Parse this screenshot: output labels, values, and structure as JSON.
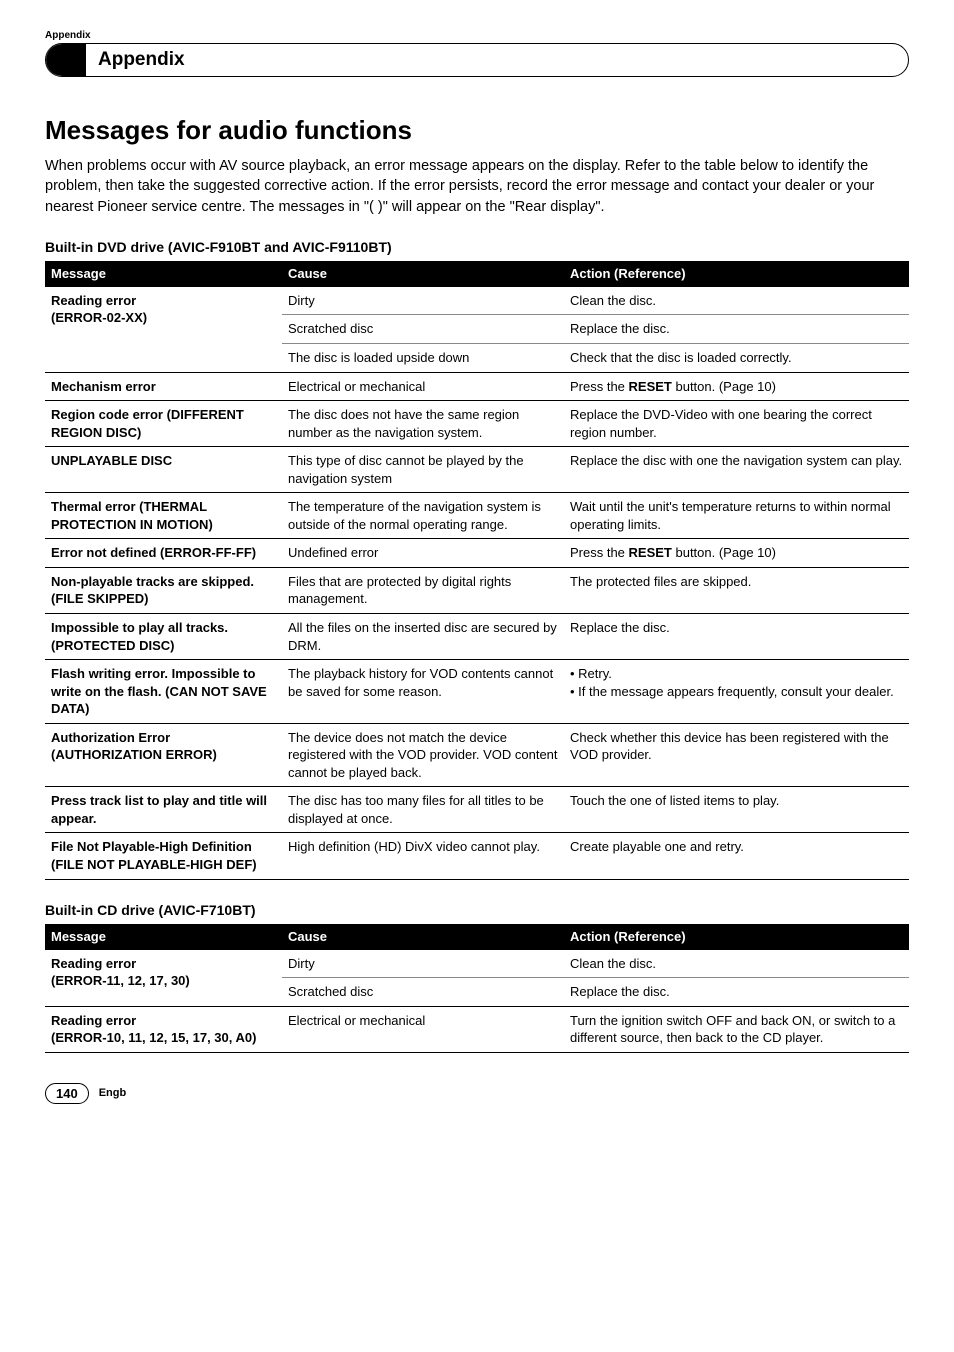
{
  "header": {
    "section_label": "Appendix",
    "title": "Appendix"
  },
  "main_heading": "Messages for audio functions",
  "intro": "When problems occur with AV source playback, an error message appears on the display. Refer to the table below to identify the problem, then take the suggested corrective action. If the error persists, record the error message and contact your dealer or your nearest Pioneer service centre. The messages in \"( )\" will appear on the \"Rear display\".",
  "table1": {
    "heading": "Built-in DVD drive (AVIC-F910BT and AVIC-F9110BT)",
    "columns": [
      "Message",
      "Cause",
      "Action (Reference)"
    ],
    "groups": [
      {
        "msg_lines": [
          "Reading error",
          "(ERROR-02-XX)"
        ],
        "rows": [
          {
            "cause": "Dirty",
            "action": "Clean the disc."
          },
          {
            "cause": "Scratched disc",
            "action": "Replace the disc."
          },
          {
            "cause": "The disc is loaded upside down",
            "action": "Check that the disc is loaded correctly."
          }
        ]
      },
      {
        "msg_lines": [
          "Mechanism error"
        ],
        "rows": [
          {
            "cause": "Electrical or mechanical",
            "action_html": "Press the <b>RESET</b> button. (Page 10)"
          }
        ]
      },
      {
        "msg_lines": [
          "Region code error (DIFFERENT REGION DISC)"
        ],
        "rows": [
          {
            "cause": "The disc does not have the same region number as the navigation system.",
            "action": "Replace the DVD-Video with one bearing the correct region number."
          }
        ]
      },
      {
        "msg_lines": [
          "UNPLAYABLE DISC"
        ],
        "rows": [
          {
            "cause": "This type of disc cannot be played by the navigation system",
            "action": "Replace the disc with one the navigation system can play."
          }
        ]
      },
      {
        "msg_lines": [
          "Thermal error (THERMAL PROTECTION IN MOTION)"
        ],
        "rows": [
          {
            "cause": "The temperature of the navigation system is outside of the normal operating range.",
            "action": "Wait until the unit's temperature returns to within normal operating limits."
          }
        ]
      },
      {
        "msg_lines": [
          "Error not defined (ERROR-FF-FF)"
        ],
        "rows": [
          {
            "cause": "Undefined error",
            "action_html": "Press the <b>RESET</b> button. (Page 10)"
          }
        ]
      },
      {
        "msg_lines": [
          "Non-playable tracks are skipped. (FILE SKIPPED)"
        ],
        "rows": [
          {
            "cause": "Files that are protected by digital rights management.",
            "action": "The protected files are skipped."
          }
        ]
      },
      {
        "msg_lines": [
          "Impossible to play all tracks. (PROTECTED DISC)"
        ],
        "rows": [
          {
            "cause": "All the files on the inserted disc are secured by DRM.",
            "action": "Replace the disc."
          }
        ]
      },
      {
        "msg_lines": [
          "Flash writing error. Impossible to write on the flash. (CAN NOT SAVE DATA)"
        ],
        "rows": [
          {
            "cause": "The playback history for VOD contents cannot be saved for some reason.",
            "action_html": "• Retry.<br>• If the message appears frequently, consult your dealer."
          }
        ]
      },
      {
        "msg_lines": [
          "Authorization Error (AUTHORIZATION ERROR)"
        ],
        "rows": [
          {
            "cause": "The device does not match the device registered with the VOD provider. VOD content cannot be played back.",
            "action": "Check whether this device has been registered with the VOD provider."
          }
        ]
      },
      {
        "msg_lines": [
          "Press track list to play and title will appear."
        ],
        "rows": [
          {
            "cause": "The disc has too many files for all titles to be displayed at once.",
            "action": "Touch the one of listed items to play."
          }
        ]
      },
      {
        "msg_lines": [
          "File Not Playable-High Definition (FILE NOT PLAYABLE-HIGH DEF)"
        ],
        "rows": [
          {
            "cause": "High definition (HD) DivX video cannot play.",
            "action": "Create playable one and retry."
          }
        ]
      }
    ]
  },
  "table2": {
    "heading": "Built-in CD drive (AVIC-F710BT)",
    "columns": [
      "Message",
      "Cause",
      "Action (Reference)"
    ],
    "groups": [
      {
        "msg_lines": [
          "Reading error",
          "(ERROR-11, 12, 17, 30)"
        ],
        "rows": [
          {
            "cause": "Dirty",
            "action": "Clean the disc."
          },
          {
            "cause": "Scratched disc",
            "action": "Replace the disc."
          }
        ]
      },
      {
        "msg_lines": [
          "Reading error",
          "(ERROR-10, 11, 12, 15, 17, 30, A0)"
        ],
        "rows": [
          {
            "cause": "Electrical or mechanical",
            "action": "Turn the ignition switch OFF and back ON, or switch to a different source, then back to the CD player."
          }
        ]
      }
    ]
  },
  "footer": {
    "page_number": "140",
    "lang": "Engb"
  }
}
